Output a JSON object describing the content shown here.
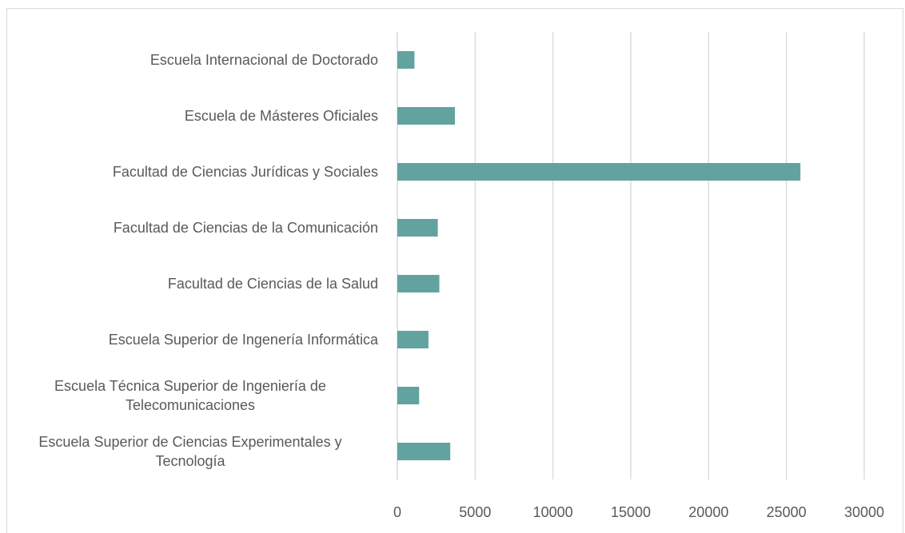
{
  "chart_data": {
    "type": "bar",
    "orientation": "horizontal",
    "categories": [
      "Escuela Internacional de Doctorado",
      "Escuela de Másteres Oficiales",
      "Facultad de Ciencias Jurídicas y Sociales",
      "Facultad de Ciencias de la Comunicación",
      "Facultad de Ciencias de la Salud",
      "Escuela Superior de Ingenería Informática",
      "Escuela Técnica Superior de Ingeniería de Telecomunicaciones",
      "Escuela Superior de Ciencias Experimentales y Tecnología"
    ],
    "values": [
      1100,
      3700,
      25900,
      2600,
      2700,
      2000,
      1400,
      3400
    ],
    "color": "#62a39f",
    "xlim": [
      0,
      30000
    ],
    "xticks": [
      0,
      5000,
      10000,
      15000,
      20000,
      25000,
      30000
    ],
    "grid": true
  }
}
